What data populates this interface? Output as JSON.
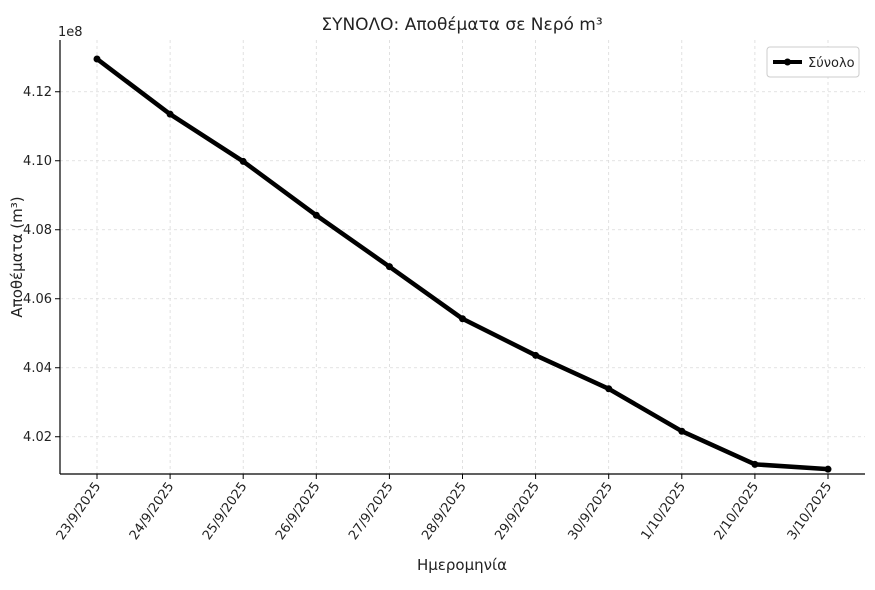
{
  "chart_data": {
    "type": "line",
    "title": "ΣΥΝΟΛΟ: Αποθέματα σε Νερό m³",
    "xlabel": "Ημερομηνία",
    "ylabel": "Αποθέματα (m³)",
    "y_offset_label": "1e8",
    "y_scale_factor": 100000000,
    "categories": [
      "23/9/2025",
      "24/9/2025",
      "25/9/2025",
      "26/9/2025",
      "27/9/2025",
      "28/9/2025",
      "29/9/2025",
      "30/9/2025",
      "1/10/2025",
      "2/10/2025",
      "3/10/2025"
    ],
    "series": [
      {
        "name": "Σύνολο",
        "color": "#000000",
        "values": [
          412950000,
          411350000,
          409980000,
          408420000,
          406930000,
          405420000,
          404360000,
          403390000,
          402160000,
          401200000,
          401060000
        ]
      }
    ],
    "ylim": [
      400920000,
      413500000
    ],
    "yticks": [
      402000000,
      404000000,
      406000000,
      408000000,
      410000000,
      412000000
    ],
    "ytick_labels": [
      "4.02",
      "4.04",
      "4.06",
      "4.08",
      "4.10",
      "4.12"
    ],
    "grid": true,
    "legend_position": "top-right"
  }
}
